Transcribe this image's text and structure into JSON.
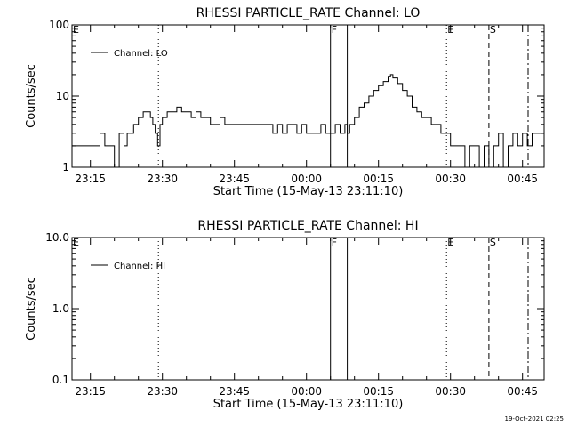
{
  "footer": {
    "timestamp": "19-Oct-2021 02:25"
  },
  "chart_data": [
    {
      "type": "line",
      "title": "RHESSI PARTICLE_RATE Channel: LO",
      "xlabel": "Start Time (15-May-13 23:11:10)",
      "ylabel": "Counts/sec",
      "yscale": "log",
      "ylim": [
        1,
        100
      ],
      "y_ticks": [
        "1",
        "10",
        "100"
      ],
      "x_range": [
        "23:11:10",
        "00:49:30"
      ],
      "x_ticks": [
        "23:15",
        "23:30",
        "23:45",
        "00:00",
        "00:15",
        "00:30",
        "00:45"
      ],
      "legend": {
        "label": "Channel: LO",
        "position": "top-left"
      },
      "series": [
        {
          "name": "Channel: LO",
          "color": "#000000",
          "points": [
            [
              "23:11:10",
              2
            ],
            [
              "23:13:00",
              2
            ],
            [
              "23:15:00",
              2
            ],
            [
              "23:16:00",
              2
            ],
            [
              "23:17:00",
              3
            ],
            [
              "23:18:00",
              2
            ],
            [
              "23:19:00",
              2
            ],
            [
              "23:20:00",
              1
            ],
            [
              "23:21:00",
              3
            ],
            [
              "23:22:00",
              2
            ],
            [
              "23:22:40",
              3
            ],
            [
              "23:23:00",
              3
            ],
            [
              "23:24:00",
              4
            ],
            [
              "23:25:00",
              5
            ],
            [
              "23:26:00",
              6
            ],
            [
              "23:27:00",
              6
            ],
            [
              "23:27:30",
              5
            ],
            [
              "23:28:00",
              4
            ],
            [
              "23:28:30",
              3
            ],
            [
              "23:29:00",
              2
            ],
            [
              "23:29:30",
              4
            ],
            [
              "23:30:00",
              5
            ],
            [
              "23:31:00",
              6
            ],
            [
              "23:32:00",
              6
            ],
            [
              "23:33:00",
              7
            ],
            [
              "23:34:00",
              6
            ],
            [
              "23:35:00",
              6
            ],
            [
              "23:36:00",
              5
            ],
            [
              "23:37:00",
              6
            ],
            [
              "23:38:00",
              5
            ],
            [
              "23:39:00",
              5
            ],
            [
              "23:40:00",
              4
            ],
            [
              "23:41:00",
              4
            ],
            [
              "23:42:00",
              5
            ],
            [
              "23:43:00",
              4
            ],
            [
              "23:44:00",
              4
            ],
            [
              "23:45:00",
              4
            ],
            [
              "23:47:00",
              4
            ],
            [
              "23:49:00",
              4
            ],
            [
              "23:51:00",
              4
            ],
            [
              "23:53:00",
              3
            ],
            [
              "23:54:00",
              4
            ],
            [
              "23:55:00",
              3
            ],
            [
              "23:56:00",
              4
            ],
            [
              "23:57:00",
              4
            ],
            [
              "23:58:00",
              3
            ],
            [
              "23:59:00",
              4
            ],
            [
              "00:00:00",
              3
            ],
            [
              "00:01:00",
              3
            ],
            [
              "00:02:00",
              3
            ],
            [
              "00:03:00",
              4
            ],
            [
              "00:04:00",
              3
            ],
            [
              "00:05:00",
              3
            ],
            [
              "00:06:00",
              4
            ],
            [
              "00:07:00",
              3
            ],
            [
              "00:08:00",
              4
            ],
            [
              "00:08:30",
              3
            ],
            [
              "00:09:00",
              4
            ],
            [
              "00:10:00",
              5
            ],
            [
              "00:11:00",
              7
            ],
            [
              "00:12:00",
              8
            ],
            [
              "00:13:00",
              10
            ],
            [
              "00:14:00",
              12
            ],
            [
              "00:15:00",
              14
            ],
            [
              "00:16:00",
              16
            ],
            [
              "00:17:00",
              19
            ],
            [
              "00:17:30",
              20
            ],
            [
              "00:18:00",
              18
            ],
            [
              "00:19:00",
              15
            ],
            [
              "00:20:00",
              12
            ],
            [
              "00:21:00",
              10
            ],
            [
              "00:22:00",
              7
            ],
            [
              "00:23:00",
              6
            ],
            [
              "00:24:00",
              5
            ],
            [
              "00:25:00",
              5
            ],
            [
              "00:26:00",
              4
            ],
            [
              "00:27:00",
              4
            ],
            [
              "00:28:00",
              3
            ],
            [
              "00:29:00",
              3
            ],
            [
              "00:30:00",
              2
            ],
            [
              "00:31:00",
              2
            ],
            [
              "00:32:00",
              2
            ],
            [
              "00:33:00",
              1
            ],
            [
              "00:34:00",
              2
            ],
            [
              "00:35:00",
              2
            ],
            [
              "00:36:00",
              1
            ],
            [
              "00:37:00",
              2
            ],
            [
              "00:38:00",
              1
            ],
            [
              "00:39:00",
              2
            ],
            [
              "00:40:00",
              3
            ],
            [
              "00:41:00",
              1
            ],
            [
              "00:42:00",
              2
            ],
            [
              "00:43:00",
              3
            ],
            [
              "00:44:00",
              2
            ],
            [
              "00:45:00",
              3
            ],
            [
              "00:46:00",
              2
            ],
            [
              "00:47:00",
              3
            ]
          ]
        }
      ],
      "markers": [
        {
          "label": "E",
          "time": "23:11:10",
          "style": "none"
        },
        {
          "label": "",
          "time": "23:29:10",
          "style": "dotted"
        },
        {
          "label": "F",
          "time": "00:05:00",
          "style": "solid"
        },
        {
          "label": "",
          "time": "00:08:30",
          "style": "solid"
        },
        {
          "label": "E",
          "time": "00:29:10",
          "style": "dotted"
        },
        {
          "label": "S",
          "time": "00:38:00",
          "style": "dashed"
        },
        {
          "label": "",
          "time": "00:46:10",
          "style": "dashdot"
        }
      ]
    },
    {
      "type": "line",
      "title": "RHESSI PARTICLE_RATE Channel: HI",
      "xlabel": "Start Time (15-May-13 23:11:10)",
      "ylabel": "Counts/sec",
      "yscale": "log",
      "ylim": [
        0.1,
        10
      ],
      "y_ticks": [
        "0.1",
        "1.0",
        "10.0"
      ],
      "x_range": [
        "23:11:10",
        "00:49:30"
      ],
      "x_ticks": [
        "23:15",
        "23:30",
        "23:45",
        "00:00",
        "00:15",
        "00:30",
        "00:45"
      ],
      "legend": {
        "label": "Channel: HI",
        "position": "top-left"
      },
      "series": [
        {
          "name": "Channel: HI",
          "color": "#000000",
          "points": []
        }
      ],
      "markers": [
        {
          "label": "E",
          "time": "23:11:10",
          "style": "none"
        },
        {
          "label": "",
          "time": "23:29:10",
          "style": "dotted"
        },
        {
          "label": "F",
          "time": "00:05:00",
          "style": "solid"
        },
        {
          "label": "",
          "time": "00:08:30",
          "style": "solid"
        },
        {
          "label": "E",
          "time": "00:29:10",
          "style": "dotted"
        },
        {
          "label": "S",
          "time": "00:38:00",
          "style": "dashed"
        },
        {
          "label": "",
          "time": "00:46:10",
          "style": "dashdot"
        }
      ]
    }
  ]
}
